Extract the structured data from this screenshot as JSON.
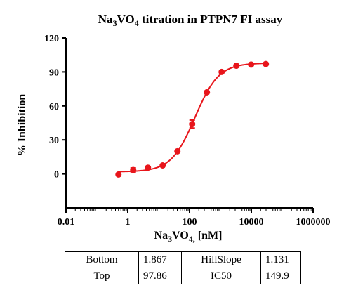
{
  "chart_data": {
    "type": "scatter",
    "title_parts": [
      "Na",
      "3",
      "VO",
      "4",
      " titration in PTPN7 FI assay"
    ],
    "xlabel_parts": [
      "Na",
      "3",
      "VO",
      "4,",
      " [nM]"
    ],
    "ylabel": "% Inhibition",
    "x_scale": "log",
    "xlim": [
      0.01,
      1000000
    ],
    "ylim": [
      -30,
      120
    ],
    "x_ticks": [
      0.01,
      1,
      100,
      10000,
      1000000
    ],
    "x_tick_labels": [
      "0.01",
      "1",
      "100",
      "10000",
      "1000000"
    ],
    "y_ticks": [
      0,
      30,
      60,
      90,
      120
    ],
    "y_tick_labels": [
      "0",
      "30",
      "60",
      "90",
      "120"
    ],
    "series": [
      {
        "color": "#e8151b",
        "x": [
          0.5,
          1.5,
          4.5,
          13.5,
          40.5,
          121.5,
          364.5,
          1093.5,
          3280.5,
          9841.5,
          29524.5
        ],
        "y": [
          -0.5,
          3.5,
          5.5,
          7.5,
          20,
          44,
          72,
          90,
          95.5,
          96.5,
          97
        ],
        "err": [
          0,
          1.8,
          0,
          0,
          0,
          3.5,
          0,
          0,
          0,
          0,
          0
        ]
      }
    ],
    "fit": {
      "bottom": 1.867,
      "top": 97.86,
      "ic50": 149.9,
      "hill": 1.131
    }
  },
  "table": {
    "rows": [
      {
        "name1": "Bottom",
        "val1": "1.867",
        "name2": "HillSlope",
        "val2": "1.131"
      },
      {
        "name1": "Top",
        "val1": "97.86",
        "name2": "IC50",
        "val2": "149.9"
      }
    ]
  }
}
